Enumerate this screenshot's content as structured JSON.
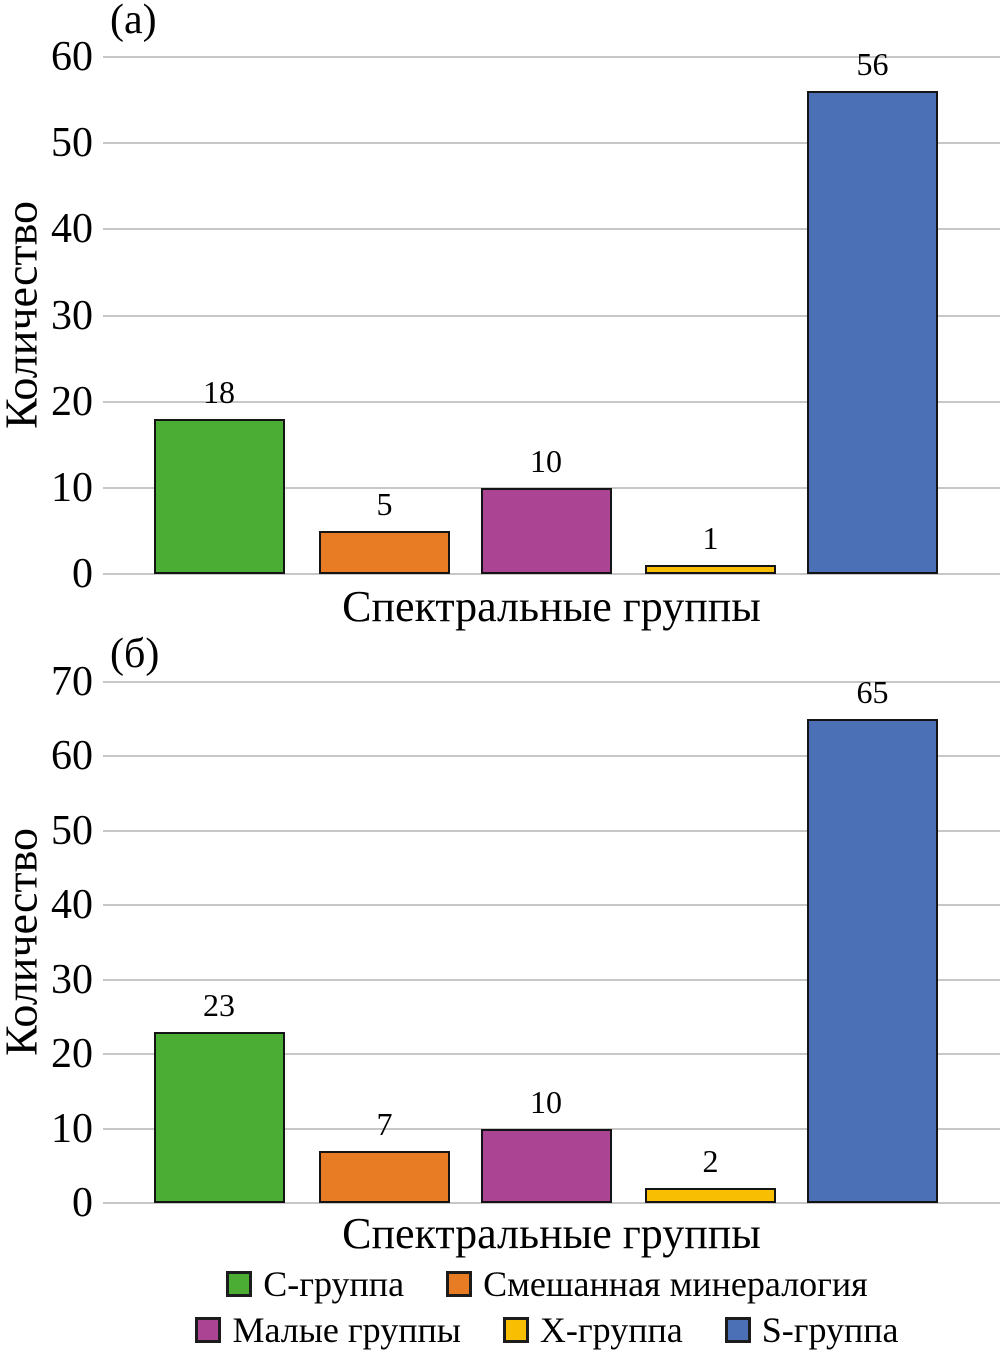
{
  "style": {
    "background": "#ffffff",
    "grid_color": "#c7c7c7",
    "bar_border_color": "#141414",
    "text_color": "#000000"
  },
  "chart_data": [
    {
      "type": "bar",
      "panel_label": "(а)",
      "xlabel": "Спектральные группы",
      "ylabel": "Количество",
      "categories": [
        "C-группа",
        "Смешанная минералогия",
        "Малые группы",
        "X-группа",
        "S-группа"
      ],
      "values": [
        18,
        5,
        10,
        1,
        56
      ],
      "value_labels": [
        "18",
        "5",
        "10",
        "1",
        "56"
      ],
      "colors": [
        "#4BAD33",
        "#E87C25",
        "#AC4494",
        "#F8BE02",
        "#4C70B5"
      ],
      "ylim": [
        0,
        60
      ],
      "ytick_step": 10,
      "yticks": [
        0,
        10,
        20,
        30,
        40,
        50,
        60
      ],
      "grid": true,
      "legend_position": "shared-bottom"
    },
    {
      "type": "bar",
      "panel_label": "(б)",
      "xlabel": "Спектральные группы",
      "ylabel": "Количество",
      "categories": [
        "C-группа",
        "Смешанная минералогия",
        "Малые группы",
        "X-группа",
        "S-группа"
      ],
      "values": [
        23,
        7,
        10,
        2,
        65
      ],
      "value_labels": [
        "23",
        "7",
        "10",
        "2",
        "65"
      ],
      "colors": [
        "#4BAD33",
        "#E87C25",
        "#AC4494",
        "#F8BE02",
        "#4C70B5"
      ],
      "ylim": [
        0,
        70
      ],
      "ytick_step": 10,
      "yticks": [
        0,
        10,
        20,
        30,
        40,
        50,
        60,
        70
      ],
      "grid": true,
      "legend_position": "shared-bottom"
    }
  ],
  "legend": {
    "rows": [
      [
        {
          "label": "C-группа",
          "color": "#4BAD33"
        },
        {
          "label": "Смешанная минералогия",
          "color": "#E87C25"
        }
      ],
      [
        {
          "label": "Малые группы",
          "color": "#AC4494"
        },
        {
          "label": "X-группа",
          "color": "#F8BE02"
        },
        {
          "label": "S-группа",
          "color": "#4C70B5"
        }
      ]
    ]
  }
}
